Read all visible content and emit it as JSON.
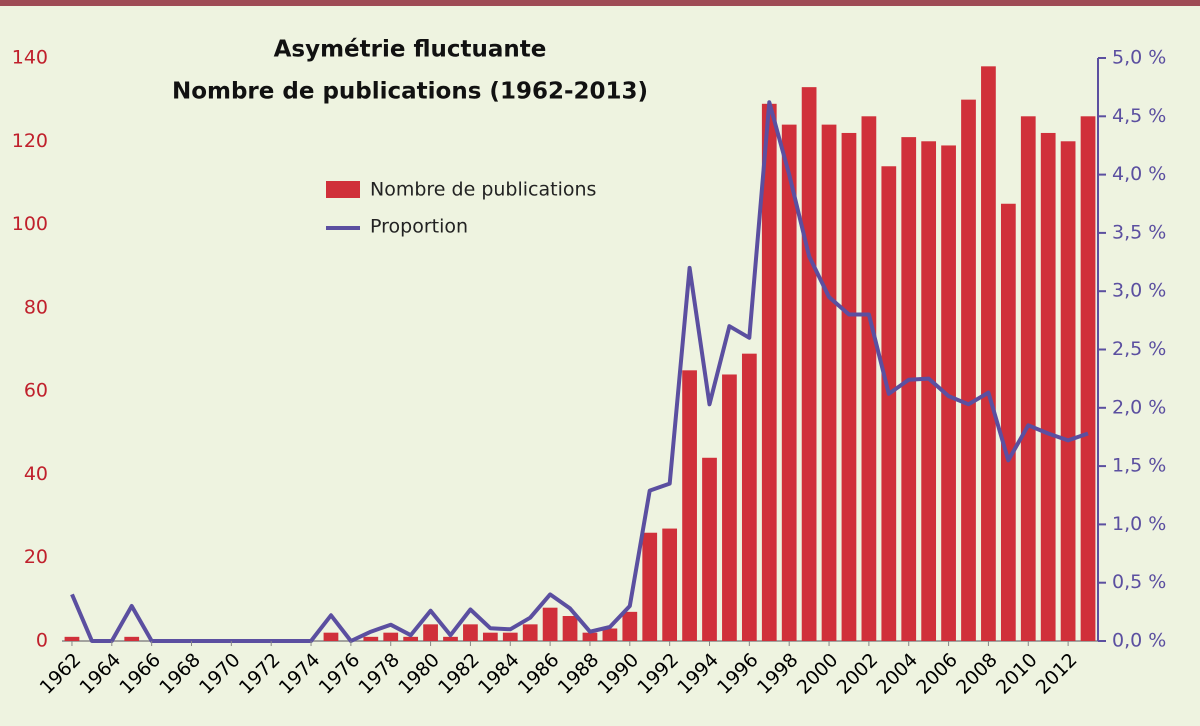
{
  "chart_data": {
    "type": "bar-line",
    "title": "Asymétrie fluctuante",
    "subtitle": "Nombre de publications (1962-2013)",
    "categories": [
      "1962",
      null,
      "1964",
      null,
      "1966",
      null,
      "1968",
      null,
      "1970",
      null,
      "1972",
      null,
      "1974",
      null,
      "1976",
      null,
      "1978",
      null,
      "1980",
      null,
      "1982",
      null,
      "1984",
      null,
      "1986",
      null,
      "1988",
      null,
      "1990",
      null,
      "1992",
      null,
      "1994",
      null,
      "1996",
      null,
      "1998",
      null,
      "2000",
      null,
      "2002",
      null,
      "2004",
      null,
      "2006",
      null,
      "2008",
      null,
      "2010",
      null,
      "2012",
      null
    ],
    "series": [
      {
        "name": "Nombre de publications",
        "color": "#d0303a",
        "values": [
          1,
          0,
          0,
          1,
          0,
          0,
          0,
          0,
          0,
          0,
          0,
          0,
          0,
          2,
          0,
          1,
          2,
          1,
          4,
          1,
          4,
          2,
          2,
          4,
          8,
          6,
          2,
          3,
          7,
          26,
          27,
          65,
          44,
          64,
          69,
          129,
          124,
          133,
          124,
          122,
          126,
          114,
          121,
          120,
          119,
          130,
          138,
          105,
          126,
          122,
          120,
          126
        ]
      },
      {
        "name": "Proportion",
        "color": "#5b4fa0",
        "axis": "y2",
        "values": [
          0.4,
          0,
          0,
          0.3,
          0,
          0,
          0,
          0,
          0,
          0,
          0,
          0,
          0,
          0.22,
          0,
          0.08,
          0.14,
          0.05,
          0.26,
          0.05,
          0.27,
          0.11,
          0.1,
          0.2,
          0.4,
          0.28,
          0.08,
          0.12,
          0.3,
          1.29,
          1.35,
          3.2,
          2.03,
          2.7,
          2.6,
          4.62,
          4.0,
          3.3,
          2.95,
          2.8,
          2.8,
          2.12,
          2.24,
          2.25,
          2.1,
          2.03,
          2.13,
          1.55,
          1.85,
          1.78,
          1.72,
          1.78
        ]
      }
    ],
    "ylim": [
      0,
      140
    ],
    "yticks": [
      0,
      20,
      40,
      60,
      80,
      100,
      120,
      140
    ],
    "y2lim": [
      0,
      5
    ],
    "y2ticks": [
      {
        "value": 0,
        "label": "0,0 %"
      },
      {
        "value": 0.5,
        "label": "0,5 %"
      },
      {
        "value": 1,
        "label": "1,0 %"
      },
      {
        "value": 1.5,
        "label": "1,5 %"
      },
      {
        "value": 2,
        "label": "2,0 %"
      },
      {
        "value": 2.5,
        "label": "2,5 %"
      },
      {
        "value": 3,
        "label": "3,0 %"
      },
      {
        "value": 3.5,
        "label": "3,5 %"
      },
      {
        "value": 4,
        "label": "4,0 %"
      },
      {
        "value": 4.5,
        "label": "4,5 %"
      },
      {
        "value": 5,
        "label": "5,0 %"
      }
    ]
  }
}
